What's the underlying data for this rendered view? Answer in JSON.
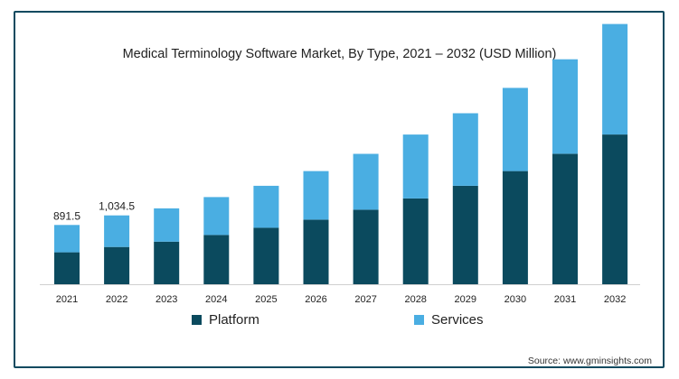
{
  "source_text": "Source: www.gminsights.com",
  "colors": {
    "platform": "#0b4a5e",
    "services": "#4aaee2",
    "border": "#0e4a5f"
  },
  "chart_data": {
    "type": "bar",
    "stacked": true,
    "title": "Medical Terminology Software Market, By Type, 2021 – 2032 (USD Million)",
    "xlabel": "",
    "ylabel": "",
    "categories": [
      "2021",
      "2022",
      "2023",
      "2024",
      "2025",
      "2026",
      "2027",
      "2028",
      "2029",
      "2030",
      "2031",
      "2032"
    ],
    "series": [
      {
        "name": "Platform",
        "color": "#0b4a5e",
        "values": [
          480,
          560,
          640,
          740,
          850,
          970,
          1120,
          1290,
          1480,
          1700,
          1960,
          2250
        ]
      },
      {
        "name": "Services",
        "color": "#4aaee2",
        "values": [
          411.5,
          474.5,
          500,
          570,
          630,
          730,
          840,
          960,
          1090,
          1250,
          1420,
          1660
        ]
      }
    ],
    "data_labels": [
      {
        "category": "2021",
        "text": "891.5"
      },
      {
        "category": "2022",
        "text": "1,034.5"
      }
    ],
    "ylim": [
      0,
      4000
    ],
    "grid": false,
    "legend": "bottom"
  }
}
